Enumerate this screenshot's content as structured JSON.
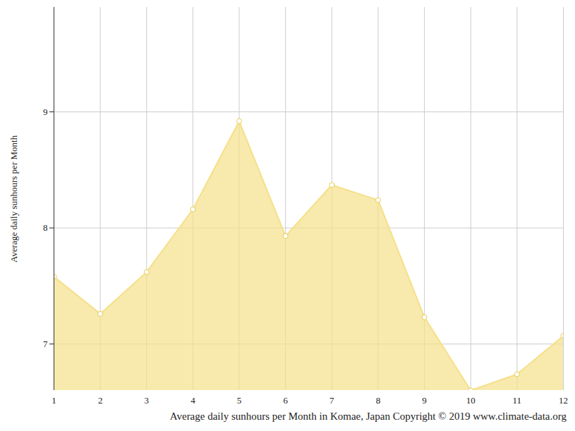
{
  "chart_data": {
    "type": "area",
    "title": "Average daily sunhours per Month in Komae, Japan Copyright © 2019 www.climate-data.org",
    "ylabel": "Average daily sunhours per Month",
    "x": [
      1,
      2,
      3,
      4,
      5,
      6,
      7,
      8,
      9,
      10,
      11,
      12
    ],
    "values": [
      7.58,
      7.26,
      7.62,
      8.16,
      8.92,
      7.93,
      8.37,
      8.24,
      7.23,
      6.6,
      6.74,
      7.07
    ],
    "color": "#f5e08a",
    "marker": "circle",
    "xlim": [
      1,
      12
    ],
    "xticks": [
      1,
      2,
      3,
      4,
      5,
      6,
      7,
      8,
      9,
      10,
      11,
      12
    ],
    "ylim": [
      6.6,
      9.9
    ],
    "yticks": [
      7,
      8,
      9
    ],
    "grid": true
  }
}
